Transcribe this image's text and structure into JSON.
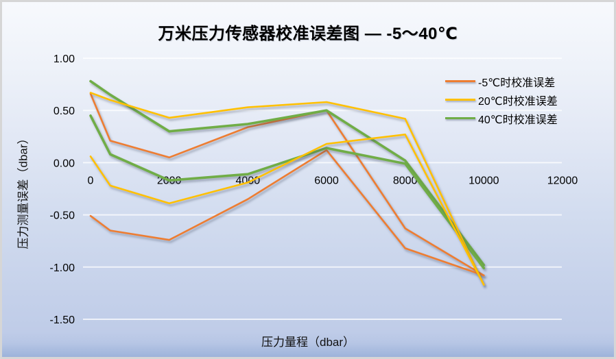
{
  "title": "万米压力传感器校准误差图 — -5～40℃",
  "chart_data": {
    "type": "line",
    "x": [
      0,
      500,
      2000,
      4000,
      6000,
      8000,
      10000
    ],
    "series": [
      {
        "name": "-5℃时校准误差",
        "color": "#ED7D31",
        "runs": [
          [
            0.66,
            0.21,
            0.05,
            0.34,
            0.5,
            -0.63,
            -1.08
          ],
          [
            -0.51,
            -0.65,
            -0.74,
            -0.35,
            0.12,
            -0.82,
            -1.08
          ]
        ]
      },
      {
        "name": "20℃时校准误差",
        "color": "#FFC000",
        "runs": [
          [
            0.67,
            0.6,
            0.43,
            0.53,
            0.58,
            0.42,
            -1.17
          ],
          [
            0.06,
            -0.22,
            -0.39,
            -0.19,
            0.18,
            0.27,
            -1.17
          ]
        ]
      },
      {
        "name": "40℃时校准误差",
        "color": "#70AD47",
        "runs": [
          [
            0.78,
            0.65,
            0.3,
            0.37,
            0.5,
            0.02,
            -0.98
          ],
          [
            0.45,
            0.08,
            -0.17,
            -0.11,
            0.14,
            -0.01,
            -1.01
          ]
        ]
      }
    ],
    "xlabel": "压力量程（dbar）",
    "ylabel": "压力测量误差（dbar）",
    "xlim": [
      0,
      12000
    ],
    "ylim": [
      -1.5,
      1.0
    ],
    "x_ticks": [
      "0",
      "2000",
      "4000",
      "6000",
      "8000",
      "10000",
      "12000"
    ],
    "x_tick_values": [
      0,
      2000,
      4000,
      6000,
      8000,
      10000,
      12000
    ],
    "y_ticks": [
      "1.00",
      "0.50",
      "0.00",
      "-0.50",
      "-1.00",
      "-1.50"
    ],
    "y_tick_values": [
      1.0,
      0.5,
      0.0,
      -0.5,
      -1.0,
      -1.5
    ],
    "grid": true,
    "gridline_color": "rgba(255,255,255,0.72)",
    "legend_position": "upper-right"
  }
}
